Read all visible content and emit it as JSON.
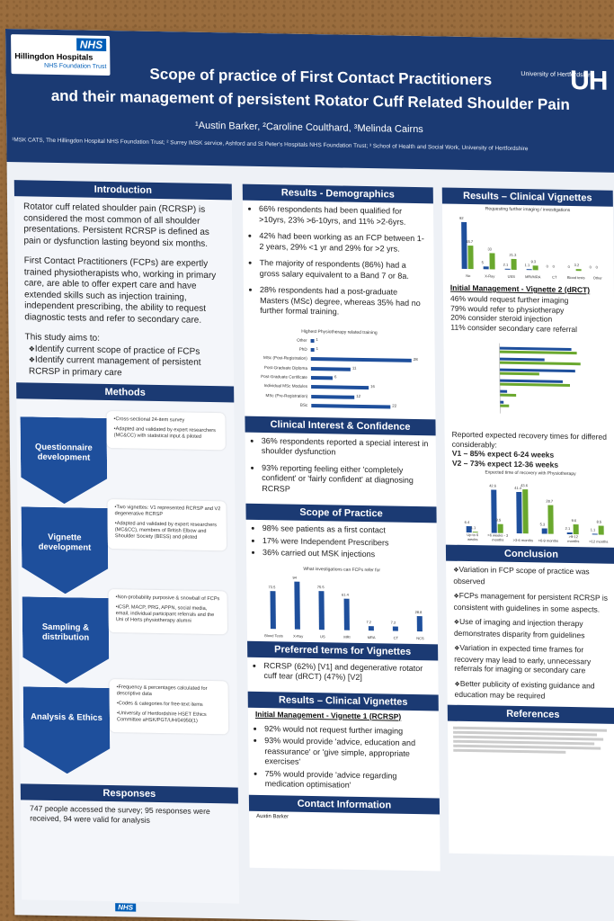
{
  "header": {
    "nhs_logo": "NHS",
    "nhs_name": "Hillingdon Hospitals",
    "nhs_sub": "NHS Foundation Trust",
    "uh_text": "University of Hertfordshire",
    "uh_mark": "UH",
    "title_line1": "Scope of practice of First Contact Practitioners",
    "title_line2": "and their management of persistent Rotator Cuff Related Shoulder Pain",
    "authors": "¹Austin Barker, ²Caroline Coulthard, ³Melinda Cairns",
    "affiliations": "¹MSK CATS, The Hillingdon Hospital NHS Foundation Trust; ² Surrey IMSK service, Ashford and St Peter's Hospitals NHS Foundation Trust; ³ School of Health and Social Work, University of Hertfordshire"
  },
  "introduction": {
    "title": "Introduction",
    "p1": "Rotator cuff related shoulder pain (RCRSP) is considered the most common of all shoulder presentations. Persistent RCRSP is defined as pain or dysfunction lasting beyond six months.",
    "p2": "First Contact Practitioners (FCPs) are expertly trained physiotherapists who, working in primary care, are able to offer expert care and have extended skills such as injection training, independent prescribing, the ability to request diagnostic tests and refer to secondary care.",
    "aims_intro": "This study aims to:",
    "aims": [
      "Identify current scope of practice of FCPs",
      "Identify current management of persistent RCRSP in primary care"
    ]
  },
  "methods": {
    "title": "Methods",
    "steps": [
      {
        "label": "Questionnaire development",
        "points": [
          "Cross-sectional 24-item survey",
          "Adapted and validated by expert researchers (MC&CC) with statistical input & piloted"
        ]
      },
      {
        "label": "Vignette development",
        "points": [
          "Two vignettes: V1 represented RCRSP and V2 degenerative RCRSP",
          "Adapted and validated by expert researchers (MC&CC), members of British Elbow and Shoulder Society (BESS) and piloted"
        ]
      },
      {
        "label": "Sampling & distribution",
        "points": [
          "Non-probability purposive & snowball of FCPs",
          "iCSP, MACP, PRG, APPN, social media, email, individual participant referrals and the Uni of Herts physiotherapy alumni"
        ]
      },
      {
        "label": "Analysis & Ethics",
        "points": [
          "Frequency & percentages calculated for descriptive data",
          "Codes & categories for free-text items",
          "University of Hertfordshire HSET Ethics Committee aHSK/PGT/UH/04950(1)"
        ]
      }
    ]
  },
  "responses": {
    "title": "Responses",
    "text": "747 people accessed the survey; 95 responses were received, 94 were valid for analysis"
  },
  "demographics": {
    "title": "Results - Demographics",
    "bullets": [
      "66% respondents had been qualified for >10yrs, 23% >6-10yrs, and 11% >2-6yrs.",
      "42% had been working as an FCP between 1-2 years, 29% <1 yr and 29% for >2 yrs.",
      "The majority of respondents (86%) had a gross salary equivalent to a Band 7 or 8a.",
      "28% respondents had a post-graduate Masters (MSc) degree, whereas 35% had no further formal training."
    ]
  },
  "clinical_interest": {
    "title": "Clinical Interest & Confidence",
    "bullets": [
      "36% respondents reported a special interest in shoulder dysfunction",
      "93% reporting feeling either 'completely confident' or 'fairly confident' at diagnosing RCRSP"
    ]
  },
  "scope": {
    "title": "Scope of Practice",
    "bullets": [
      "98% see patients as a first contact",
      "17% were Independent Prescribers",
      "36% carried out MSK injections"
    ]
  },
  "preferred_terms": {
    "title": "Preferred terms for Vignettes",
    "text": "RCRSP (62%) [V1] and degenerative rotator cuff tear (dRCT) (47%) [V2]"
  },
  "vignettes1": {
    "title": "Results – Clinical Vignettes",
    "subhead": "Initial Management - Vignette 1 (RCRSP)",
    "bullets": [
      "92% would not request further imaging",
      "93% would provide 'advice, education and reassurance' or 'give simple, appropriate exercises'",
      "75% would provide 'advice regarding medication optimisation'"
    ]
  },
  "contact": {
    "title": "Contact Information",
    "name": "Austin Barker"
  },
  "vignettes2": {
    "title": "Results – Clinical Vignettes",
    "subhead": "Initial Management - Vignette 2 (dRCT)",
    "bullets": [
      "46% would request further imaging",
      "79% would refer to physiotherapy",
      "20% consider steroid injection",
      "11% consider secondary care referral"
    ],
    "recovery_intro": "Reported expected recovery times for differed considerably:",
    "recovery": [
      "V1 – 85% expect 6-24 weeks",
      "V2 – 73% expect 12-36 weeks"
    ]
  },
  "conclusion": {
    "title": "Conclusion",
    "items": [
      "Variation in FCP scope of practice was observed",
      "FCPs management for persistent RCRSP is consistent with guidelines in some aspects.",
      "Use of imaging and injection therapy demonstrates disparity from guidelines",
      "Variation in expected time frames for recovery may lead to early, unnecessary referrals for imaging or secondary care",
      "Better publicity of existing guidance and education may be required"
    ]
  },
  "references": {
    "title": "References"
  },
  "footer_logo": "NHS",
  "chart_data": [
    {
      "type": "bar",
      "title": "Highest Physiotherapy related training",
      "categories": [
        "Other",
        "PhD",
        "MSc (Post-Registration)",
        "Post-Graduate Diploma",
        "Post-Graduate Certificate",
        "Individual MSc Modules",
        "MSc (Pre-Registration)",
        "BSc"
      ],
      "values": [
        1,
        1,
        28,
        11,
        6,
        16,
        12,
        22
      ],
      "xlim": [
        0,
        30
      ]
    },
    {
      "type": "bar",
      "title": "What investigations can FCPs refer for",
      "categories": [
        "Blood Tests",
        "X-Ray",
        "US",
        "MRI",
        "MRA",
        "CT",
        "NCS"
      ],
      "values": [
        73.5,
        94,
        75.5,
        61.4,
        7.2,
        7.2,
        28.8
      ],
      "ylim": [
        0,
        100
      ]
    },
    {
      "type": "bar",
      "title": "Requesting further imaging / investigations",
      "categories": [
        "No",
        "X-Ray",
        "USS",
        "MRI/MRA",
        "CT",
        "Blood tests",
        "Other"
      ],
      "series": [
        {
          "name": "V1",
          "values": [
            92,
            5,
            2.1,
            1.1,
            0,
            0,
            0
          ]
        },
        {
          "name": "V2",
          "values": [
            45.7,
            33,
            21.3,
            9.3,
            0,
            3.2,
            0
          ]
        }
      ],
      "ylim": [
        0,
        100
      ]
    },
    {
      "type": "bar",
      "title": "Expected time of recovery with Physiotherapy",
      "categories": [
        "Up to 6 weeks",
        ">6 weeks - 3 months",
        ">3-6 months",
        ">6-9 months",
        ">9-12 months",
        ">12 months"
      ],
      "series": [
        {
          "name": "V1",
          "values": [
            6.4,
            42.6,
            41.4,
            5.3,
            2.1,
            1.1
          ]
        },
        {
          "name": "V2",
          "values": [
            1.1,
            8.5,
            43.6,
            28.7,
            9.6,
            8.5
          ]
        }
      ],
      "ylim": [
        0,
        50
      ]
    }
  ]
}
